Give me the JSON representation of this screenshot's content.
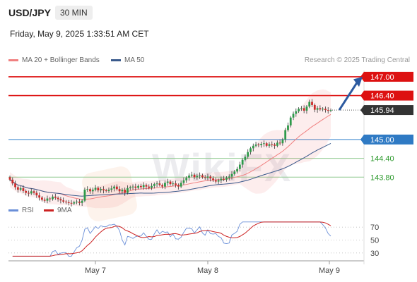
{
  "header": {
    "pair": "USD/JPY",
    "timeframe": "30 MIN",
    "datetime": "Friday, May 9, 2025 1:33:51 AM CET"
  },
  "legend": {
    "ma20_label": "MA 20 + Bollinger Bands",
    "ma50_label": "MA 50",
    "ma20_color": "#f08080",
    "ma50_color": "#3a5a8c"
  },
  "credit": "Research © 2025 Trading Central",
  "watermark": "WikiFX",
  "rsi_legend": {
    "rsi_label": "RSI",
    "ma_label": "9MA",
    "rsi_color": "#6a8fd8",
    "ma_color": "#cc2222"
  },
  "chart_data": [
    {
      "type": "candlestick",
      "title": "",
      "x_tick_labels": [
        "May 7",
        "May 8",
        "May 9"
      ],
      "ylim": [
        143.2,
        147.2
      ],
      "current_price": 145.94,
      "price_levels": [
        {
          "value": 147.0,
          "label": "147.00",
          "color": "#dd1111",
          "kind": "resistance"
        },
        {
          "value": 146.4,
          "label": "146.40",
          "color": "#dd1111",
          "kind": "resistance"
        },
        {
          "value": 145.94,
          "label": "145.94",
          "color": "#333333",
          "kind": "current"
        },
        {
          "value": 145.0,
          "label": "145.00",
          "color": "#2f7ac4",
          "kind": "pivot"
        },
        {
          "value": 144.4,
          "label": "144.40",
          "color": "#2e9a2e",
          "kind": "support"
        },
        {
          "value": 143.8,
          "label": "143.80",
          "color": "#2e9a2e",
          "kind": "support"
        }
      ],
      "closes": [
        143.72,
        143.6,
        143.48,
        143.4,
        143.45,
        143.36,
        143.3,
        143.28,
        143.35,
        143.3,
        143.22,
        143.15,
        143.08,
        143.05,
        143.12,
        143.1,
        143.18,
        143.14,
        143.1,
        143.06,
        143.02,
        143.0,
        142.98,
        142.96,
        143.0,
        143.02,
        142.98,
        143.05,
        143.4,
        143.42,
        143.35,
        143.4,
        143.46,
        143.38,
        143.42,
        143.38,
        143.36,
        143.4,
        143.44,
        143.5,
        143.42,
        143.35,
        143.4,
        143.3,
        143.45,
        143.48,
        143.5,
        143.46,
        143.52,
        143.48,
        143.55,
        143.5,
        143.46,
        143.52,
        143.58,
        143.6,
        143.55,
        143.5,
        143.62,
        143.66,
        143.58,
        143.6,
        143.55,
        143.5,
        143.62,
        143.7,
        143.78,
        143.85,
        143.88,
        143.8,
        143.84,
        143.86,
        143.8,
        143.78,
        143.82,
        143.76,
        143.7,
        143.66,
        143.7,
        143.75,
        143.72,
        143.78,
        143.82,
        143.9,
        143.98,
        144.06,
        144.2,
        144.35,
        144.45,
        144.6,
        144.72,
        144.8,
        144.84,
        144.82,
        144.86,
        144.88,
        144.8,
        144.85,
        144.84,
        144.8,
        144.9,
        144.88,
        145.0,
        145.3,
        145.45,
        145.7,
        145.82,
        145.9,
        145.98,
        146.0,
        145.92,
        146.05,
        146.2,
        146.1,
        145.95,
        146.0,
        145.96,
        145.98,
        145.94,
        145.92,
        145.94
      ],
      "ma20_description": "MA 20 with Bollinger Bands",
      "ma50_description": "MA 50"
    },
    {
      "type": "line",
      "title": "",
      "ylim": [
        20,
        80
      ],
      "y_ticks": [
        30,
        50,
        70
      ],
      "series_names": [
        "RSI",
        "9MA"
      ]
    }
  ]
}
